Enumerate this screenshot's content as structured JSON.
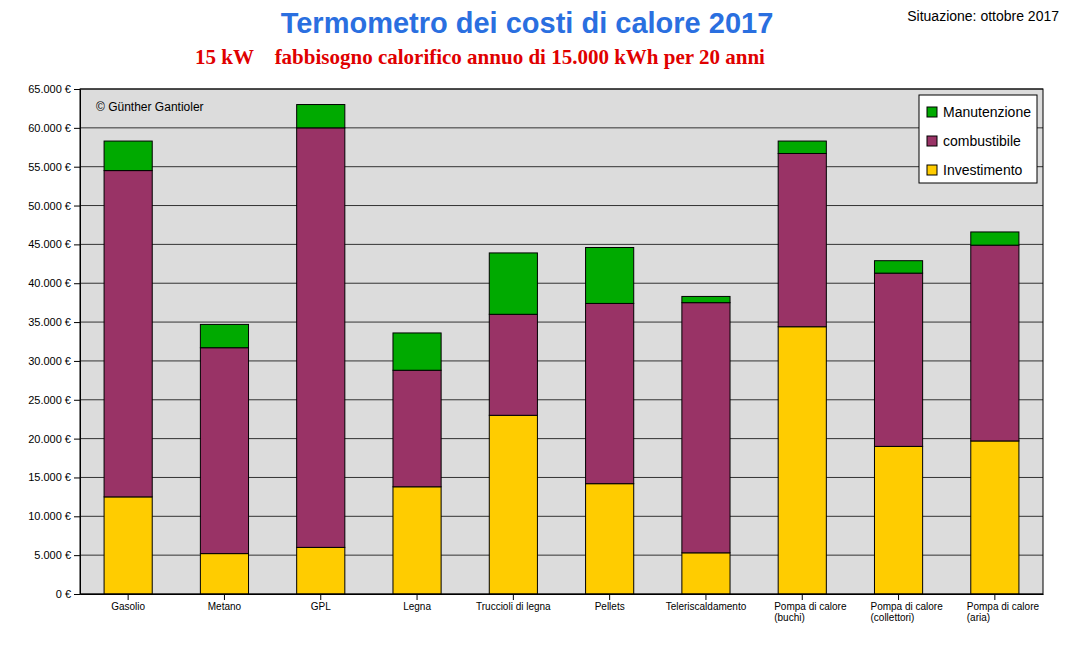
{
  "chart_data": {
    "type": "bar",
    "stacked": true,
    "grid": true,
    "legend": "top-right",
    "title": "Termometro dei costi di calore 2017",
    "subtitle": "15 kW    fabbisogno calorifico annuo di 15.000 kWh per 20 anni",
    "annotations": [
      "Situazione: ottobre 2017",
      "© Günther Gantioler"
    ],
    "categories": [
      "Gasolio",
      "Metano",
      "GPL",
      "Legna",
      "Truccioli di legna",
      "Pellets",
      "Teleriscaldamento",
      "Pompa di calore\n(buchi)",
      "Pompa di calore\n(collettori)",
      "Pompa di calore\n(aria)"
    ],
    "series": [
      {
        "name": "Investimento",
        "color": "#ffcc00",
        "values": [
          12500,
          5200,
          6000,
          13800,
          23000,
          14200,
          5300,
          34400,
          19000,
          19700
        ]
      },
      {
        "name": "combustibile",
        "color": "#993366",
        "values": [
          42000,
          26500,
          54000,
          15000,
          13000,
          23200,
          32200,
          22300,
          22300,
          25200
        ]
      },
      {
        "name": "Manutenzione",
        "color": "#00aa00",
        "values": [
          3800,
          3000,
          3000,
          4800,
          7900,
          7200,
          800,
          1600,
          1600,
          1700
        ]
      }
    ],
    "ylim": [
      0,
      65000
    ],
    "yticks": [
      {
        "value": 0,
        "label": "0 €"
      },
      {
        "value": 5000,
        "label": "5.000 €"
      },
      {
        "value": 10000,
        "label": "10.000 €"
      },
      {
        "value": 15000,
        "label": "15.000 €"
      },
      {
        "value": 20000,
        "label": "20.000 €"
      },
      {
        "value": 25000,
        "label": "25.000 €"
      },
      {
        "value": 30000,
        "label": "30.000 €"
      },
      {
        "value": 35000,
        "label": "35.000 €"
      },
      {
        "value": 40000,
        "label": "40.000 €"
      },
      {
        "value": 45000,
        "label": "45.000 €"
      },
      {
        "value": 50000,
        "label": "50.000 €"
      },
      {
        "value": 55000,
        "label": "55.000 €"
      },
      {
        "value": 60000,
        "label": "60.000 €"
      },
      {
        "value": 65000,
        "label": "65.000 €"
      }
    ]
  }
}
